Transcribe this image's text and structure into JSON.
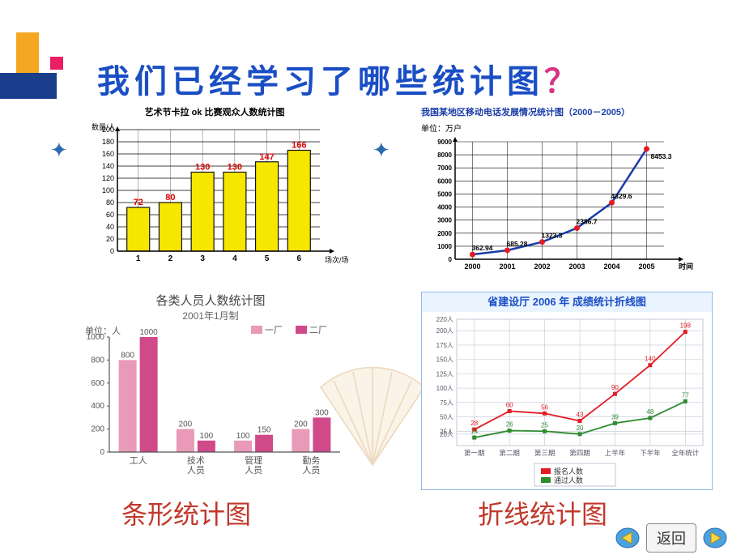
{
  "slide_title_main": "我们已经学习了哪些统计图",
  "slide_title_q": "？",
  "label_bar": "条形统计图",
  "label_line": "折线统计图",
  "nav_return": "返回",
  "chart1": {
    "type": "bar",
    "title": "艺术节卡拉 ok 比赛观众人数统计图",
    "yaxis_label": "数量/人",
    "xaxis_label": "场次/场",
    "ymax": 200,
    "ytick": 20,
    "categories": [
      "1",
      "2",
      "3",
      "4",
      "5",
      "6"
    ],
    "values": [
      72,
      80,
      130,
      130,
      147,
      166
    ],
    "bar_fill": "#f7e600",
    "bar_stroke": "#111",
    "grid_color": "#000",
    "label_color": "#d00",
    "label_fontsize": 11
  },
  "chart2": {
    "type": "line",
    "title": "我国某地区移动电话发展情况统计图（2000－2005）",
    "unit_label": "单位：万户",
    "xaxis_label": "时间",
    "ymax": 9000,
    "ytick": 1000,
    "categories": [
      "2000",
      "2001",
      "2002",
      "2003",
      "2004",
      "2005"
    ],
    "values": [
      362.94,
      685.28,
      1323.3,
      2386.7,
      4329.6,
      8453.3
    ],
    "line_color": "#1a3ca8",
    "marker_color": "#e31b23",
    "grid_color": "#000",
    "title_color": "#1a3ca8",
    "title_fontsize": 11
  },
  "chart3": {
    "type": "grouped-bar",
    "title": "各类人员人数统计图",
    "subtitle": "2001年1月制",
    "unit_label": "单位：人",
    "legend": [
      {
        "name": "一厂",
        "color": "#e89ab8"
      },
      {
        "name": "二厂",
        "color": "#d04a8a"
      }
    ],
    "ymax": 1000,
    "ytick": 200,
    "categories": [
      "工人",
      "技术\n人员",
      "管理\n人员",
      "勤务\n人员"
    ],
    "series1": [
      800,
      200,
      100,
      200
    ],
    "series2": [
      1000,
      100,
      150,
      300
    ],
    "grid_color": "#999"
  },
  "chart4": {
    "type": "line",
    "title": "省建设厅 2006 年 成绩统计折线图",
    "title_color": "#1a4ec4",
    "title_fontsize": 13,
    "border_color": "#6fa3e0",
    "bg": "#eaf4ff",
    "yticks": [
      "20人",
      "25人",
      "50人",
      "75人",
      "100人",
      "125人",
      "150人",
      "175人",
      "200人",
      "220人"
    ],
    "yvalues": [
      20,
      25,
      50,
      75,
      100,
      125,
      150,
      175,
      200,
      220
    ],
    "categories": [
      "第一期",
      "第二期",
      "第三期",
      "第四期",
      "上半年",
      "下半年",
      "全年统计"
    ],
    "series_red": {
      "name": "报名人数",
      "color": "#e31b23",
      "values": [
        28,
        60,
        56,
        43,
        90,
        140,
        198
      ]
    },
    "series_green": {
      "name": "通过人数",
      "color": "#2e8b2e",
      "values": [
        14,
        26,
        25,
        20,
        39,
        48,
        77
      ]
    },
    "grid_color": "#bfc8d4"
  }
}
